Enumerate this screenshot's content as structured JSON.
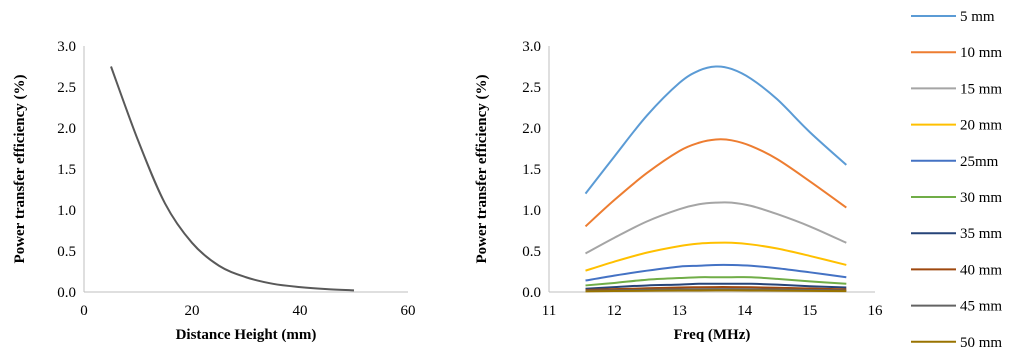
{
  "chart_data": [
    {
      "type": "line",
      "title": "",
      "xlabel": "Distance Height (mm)",
      "ylabel": "Power transfer efficiency (%)",
      "xlim": [
        0,
        60
      ],
      "ylim": [
        0,
        3.0
      ],
      "xticks": [
        "0",
        "20",
        "40",
        "60"
      ],
      "yticks": [
        "0.0",
        "0.5",
        "1.0",
        "1.5",
        "2.0",
        "2.5",
        "3.0"
      ],
      "grid": false,
      "color": "#595959",
      "x": [
        5,
        10,
        15,
        20,
        25,
        30,
        35,
        40,
        45,
        50
      ],
      "y": [
        2.75,
        1.85,
        1.08,
        0.6,
        0.32,
        0.18,
        0.1,
        0.06,
        0.035,
        0.02
      ]
    },
    {
      "type": "line",
      "title": "",
      "xlabel": "Freq (MHz)",
      "ylabel": "Power transfer efficiency (%)",
      "xlim": [
        11,
        16
      ],
      "ylim": [
        0,
        3.0
      ],
      "xticks": [
        "11",
        "12",
        "13",
        "14",
        "15",
        "16"
      ],
      "yticks": [
        "0.0",
        "0.5",
        "1.0",
        "1.5",
        "2.0",
        "2.5",
        "3.0"
      ],
      "grid": false,
      "legend_position": "right",
      "x": [
        11.56,
        12.0,
        12.5,
        13.0,
        13.3,
        13.56,
        13.8,
        14.1,
        14.5,
        15.0,
        15.56
      ],
      "series": [
        {
          "name": "5 mm",
          "color": "#5B9BD5",
          "values": [
            1.2,
            1.65,
            2.15,
            2.55,
            2.7,
            2.75,
            2.72,
            2.6,
            2.35,
            1.95,
            1.55
          ]
        },
        {
          "name": "10 mm",
          "color": "#ED7D31",
          "values": [
            0.8,
            1.12,
            1.45,
            1.72,
            1.82,
            1.86,
            1.85,
            1.78,
            1.62,
            1.35,
            1.03
          ]
        },
        {
          "name": "15 mm",
          "color": "#A5A5A5",
          "values": [
            0.47,
            0.66,
            0.86,
            1.01,
            1.07,
            1.09,
            1.09,
            1.05,
            0.95,
            0.8,
            0.6
          ]
        },
        {
          "name": "20 mm",
          "color": "#FFC000",
          "values": [
            0.26,
            0.37,
            0.48,
            0.56,
            0.59,
            0.6,
            0.6,
            0.58,
            0.53,
            0.44,
            0.33
          ]
        },
        {
          "name": "25mm",
          "color": "#4472C4",
          "values": [
            0.14,
            0.2,
            0.26,
            0.31,
            0.32,
            0.33,
            0.33,
            0.32,
            0.29,
            0.24,
            0.18
          ]
        },
        {
          "name": "30 mm",
          "color": "#70AD47",
          "values": [
            0.08,
            0.11,
            0.15,
            0.17,
            0.18,
            0.18,
            0.18,
            0.18,
            0.16,
            0.13,
            0.1
          ]
        },
        {
          "name": "35 mm",
          "color": "#264478",
          "values": [
            0.04,
            0.06,
            0.08,
            0.09,
            0.1,
            0.1,
            0.1,
            0.1,
            0.09,
            0.07,
            0.055
          ]
        },
        {
          "name": "40 mm",
          "color": "#9E480E",
          "values": [
            0.025,
            0.035,
            0.045,
            0.055,
            0.058,
            0.06,
            0.06,
            0.058,
            0.052,
            0.042,
            0.032
          ]
        },
        {
          "name": "45 mm",
          "color": "#636363",
          "values": [
            0.015,
            0.02,
            0.027,
            0.032,
            0.034,
            0.035,
            0.035,
            0.034,
            0.03,
            0.025,
            0.019
          ]
        },
        {
          "name": "50 mm",
          "color": "#997300",
          "values": [
            0.008,
            0.012,
            0.015,
            0.018,
            0.019,
            0.02,
            0.02,
            0.019,
            0.017,
            0.014,
            0.011
          ]
        }
      ]
    }
  ]
}
